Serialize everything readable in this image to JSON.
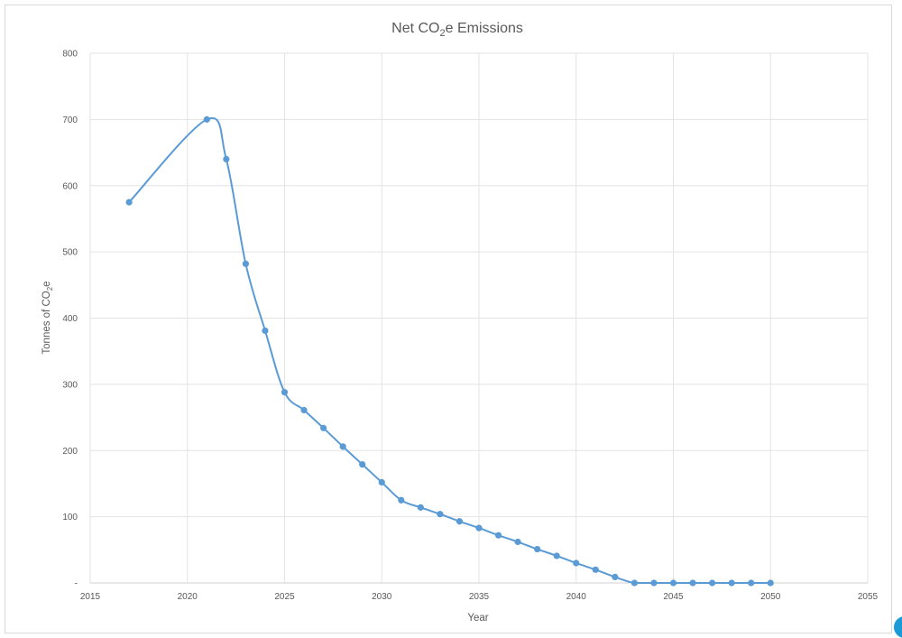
{
  "colors": {
    "series": "#5b9bd5",
    "corner_mark": "#1a9bd7"
  },
  "chart_data": {
    "type": "line",
    "title_parts": [
      "Net CO",
      "2",
      "e Emissions"
    ],
    "xlabel": "Year",
    "ylabel_parts": [
      "Tonnes of CO",
      "2",
      "e"
    ],
    "xlim": [
      2015,
      2055
    ],
    "ylim": [
      0,
      800
    ],
    "x_ticks": [
      2015,
      2020,
      2025,
      2030,
      2035,
      2040,
      2045,
      2050,
      2055
    ],
    "y_ticks": [
      {
        "value": 0,
        "label": "-"
      },
      {
        "value": 100,
        "label": "100"
      },
      {
        "value": 200,
        "label": "200"
      },
      {
        "value": 300,
        "label": "300"
      },
      {
        "value": 400,
        "label": "400"
      },
      {
        "value": 500,
        "label": "500"
      },
      {
        "value": 600,
        "label": "600"
      },
      {
        "value": 700,
        "label": "700"
      },
      {
        "value": 800,
        "label": "800"
      }
    ],
    "grid": true,
    "smooth": true,
    "series": [
      {
        "x": [
          2017,
          2021,
          2022,
          2023,
          2024,
          2025,
          2026,
          2027,
          2028,
          2029,
          2030,
          2031,
          2032,
          2033,
          2034,
          2035,
          2036,
          2037,
          2038,
          2039,
          2040,
          2041,
          2042,
          2043,
          2044,
          2045,
          2046,
          2047,
          2048,
          2049,
          2050
        ],
        "y": [
          575,
          700,
          640,
          482,
          381,
          288,
          261,
          234,
          206,
          179,
          152,
          125,
          114,
          104,
          93,
          83,
          72,
          62,
          51,
          41,
          30,
          20,
          9,
          0,
          0,
          0,
          0,
          0,
          0,
          0,
          0
        ]
      }
    ]
  }
}
